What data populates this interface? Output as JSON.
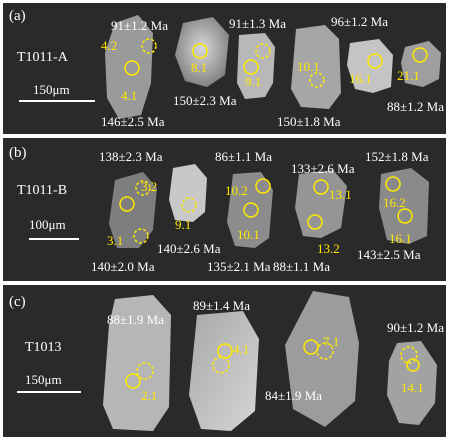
{
  "panels": {
    "a": {
      "label": "(a)",
      "sample": "T1011-A",
      "scale": "150μm",
      "ages": [
        "91±1.2 Ma",
        "91±1.3 Ma",
        "96±1.2 Ma",
        "150±2.3 Ma",
        "146±2.5 Ma",
        "150±1.8 Ma",
        "88±1.2 Ma"
      ],
      "spots": [
        "4.2",
        "4.1",
        "8.1",
        "9.1",
        "10.1",
        "16.1",
        "21.1"
      ]
    },
    "b": {
      "label": "(b)",
      "sample": "T1011-B",
      "scale": "100μm",
      "ages": [
        "138±2.3 Ma",
        "86±1.1 Ma",
        "133±2.6 Ma",
        "152±1.8 Ma",
        "140±2.6 Ma",
        "140±2.0 Ma",
        "135±2.1 Ma",
        "88±1.1 Ma",
        "143±2.5 Ma"
      ],
      "spots": [
        "3.2",
        "3.1",
        "9.1",
        "10.2",
        "10.1",
        "13.1",
        "13.2",
        "16.2",
        "16.1"
      ]
    },
    "c": {
      "label": "(c)",
      "sample": "T1013",
      "scale": "150μm",
      "ages": [
        "88±1.9 Ma",
        "89±1.4 Ma",
        "90±1.2 Ma",
        "84±1.9 Ma"
      ],
      "spots": [
        "2.1",
        "4.1",
        "7.1",
        "14.1"
      ]
    }
  },
  "colors": {
    "background": "#2a2a2a",
    "spot": "#ffe800",
    "text": "#ffffff",
    "divider": "#ffffff"
  }
}
